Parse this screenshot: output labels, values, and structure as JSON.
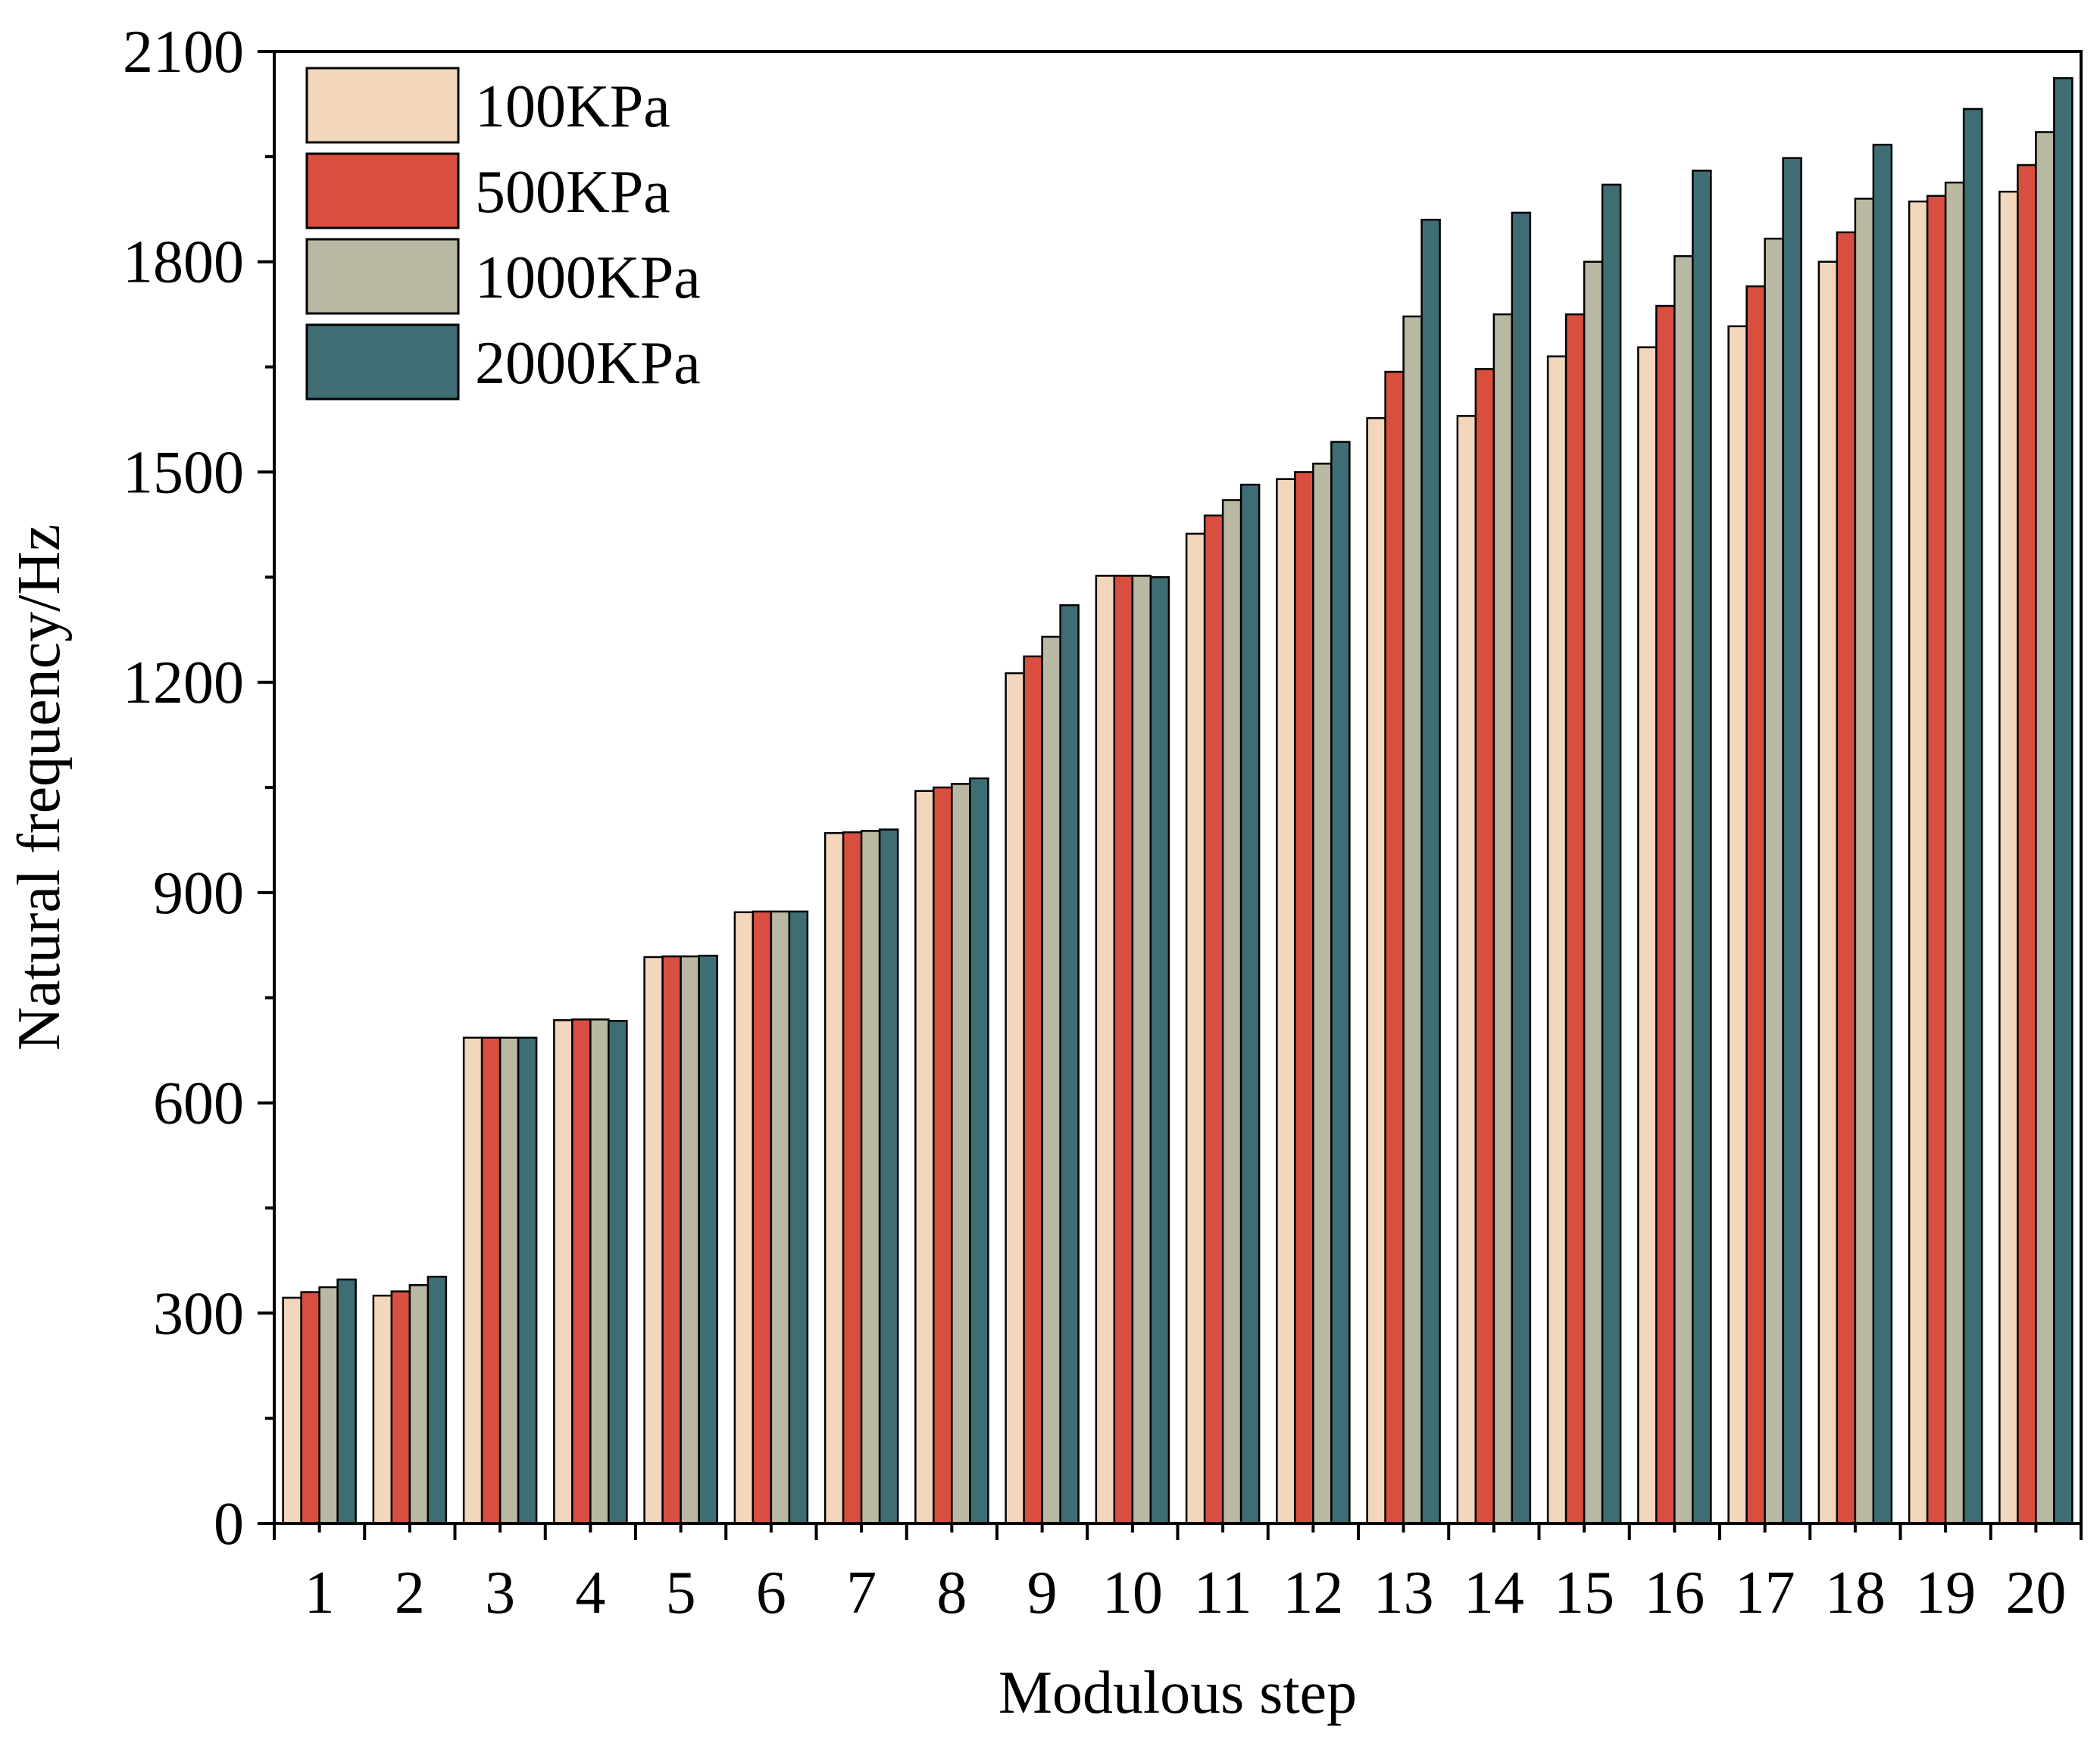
{
  "chart_data": {
    "type": "bar",
    "title": "",
    "xlabel": "Modulous step",
    "ylabel": "Natural frequency/Hz",
    "ylim": [
      0,
      2100
    ],
    "yticks": [
      0,
      300,
      600,
      900,
      1200,
      1500,
      1800,
      2100
    ],
    "categories": [
      "1",
      "2",
      "3",
      "4",
      "5",
      "6",
      "7",
      "8",
      "9",
      "10",
      "11",
      "12",
      "13",
      "14",
      "15",
      "16",
      "17",
      "18",
      "19",
      "20"
    ],
    "legend_position": "top-left",
    "grid": false,
    "series": [
      {
        "name": "100KPa",
        "color": "#f2d7bc",
        "values": [
          322,
          325,
          693,
          718,
          808,
          872,
          985,
          1045,
          1213,
          1352,
          1412,
          1490,
          1577,
          1580,
          1665,
          1678,
          1708,
          1800,
          1886,
          1900
        ]
      },
      {
        "name": "500KPa",
        "color": "#d94f3f",
        "values": [
          330,
          331,
          693,
          719,
          809,
          873,
          986,
          1050,
          1237,
          1352,
          1438,
          1500,
          1643,
          1647,
          1725,
          1737,
          1765,
          1842,
          1894,
          1938
        ]
      },
      {
        "name": "1000KPa",
        "color": "#b9b8a2",
        "values": [
          337,
          340,
          693,
          719,
          809,
          873,
          988,
          1055,
          1265,
          1352,
          1460,
          1512,
          1722,
          1725,
          1800,
          1808,
          1833,
          1890,
          1913,
          1985
        ]
      },
      {
        "name": "2000KPa",
        "color": "#3e6e74",
        "values": [
          348,
          352,
          693,
          717,
          810,
          873,
          990,
          1063,
          1310,
          1350,
          1482,
          1543,
          1860,
          1870,
          1910,
          1930,
          1948,
          1967,
          2018,
          2062
        ]
      }
    ]
  }
}
